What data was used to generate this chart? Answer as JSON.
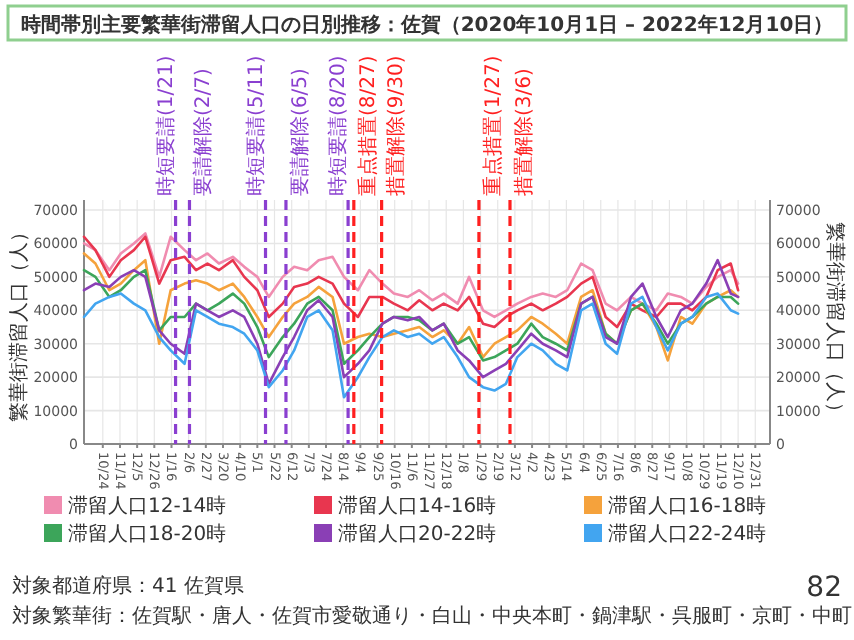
{
  "chart_data": {
    "type": "line",
    "title": "時間帯別主要繁華街滞留人口の日別推移：佐賀（2020年10月1日 – 2022年12月10日）",
    "ylabel": "繁華街滞留人口（人）",
    "y2label": "繁華街滞留人口（人）",
    "x": [
      "2020-10-01",
      "2020-10-15",
      "2020-11-01",
      "2020-11-15",
      "2020-12-01",
      "2020-12-15",
      "2021-01-01",
      "2021-01-15",
      "2021-02-01",
      "2021-02-15",
      "2021-03-01",
      "2021-03-15",
      "2021-04-01",
      "2021-04-15",
      "2021-05-01",
      "2021-05-15",
      "2021-06-01",
      "2021-06-15",
      "2021-07-01",
      "2021-07-15",
      "2021-08-01",
      "2021-08-15",
      "2021-09-01",
      "2021-09-15",
      "2021-10-01",
      "2021-10-15",
      "2021-11-01",
      "2021-11-15",
      "2021-12-01",
      "2021-12-15",
      "2022-01-01",
      "2022-01-15",
      "2022-02-01",
      "2022-02-15",
      "2022-03-01",
      "2022-03-15",
      "2022-04-01",
      "2022-04-15",
      "2022-05-01",
      "2022-05-15",
      "2022-06-01",
      "2022-06-15",
      "2022-07-01",
      "2022-07-15",
      "2022-08-01",
      "2022-08-15",
      "2022-09-01",
      "2022-09-15",
      "2022-10-01",
      "2022-10-15",
      "2022-11-01",
      "2022-11-15",
      "2022-12-01",
      "2022-12-10"
    ],
    "series": [
      {
        "name": "滞留人口12-14時",
        "color": "#f08cb0",
        "values": [
          60000,
          58000,
          52000,
          57000,
          60000,
          63000,
          50000,
          62000,
          58000,
          55000,
          57000,
          54000,
          56000,
          53000,
          50000,
          44000,
          50000,
          53000,
          52000,
          55000,
          56000,
          50000,
          46000,
          52000,
          48000,
          45000,
          44000,
          46000,
          43000,
          45000,
          42000,
          50000,
          40000,
          38000,
          40000,
          42000,
          44000,
          45000,
          44000,
          46000,
          54000,
          52000,
          42000,
          40000,
          44000,
          42000,
          40000,
          45000,
          44000,
          42000,
          47000,
          50000,
          52000,
          48000
        ]
      },
      {
        "name": "滞留人口14-16時",
        "color": "#e8364f",
        "values": [
          62000,
          58000,
          50000,
          55000,
          58000,
          62000,
          48000,
          55000,
          56000,
          52000,
          54000,
          52000,
          55000,
          50000,
          46000,
          38000,
          42000,
          47000,
          48000,
          50000,
          48000,
          42000,
          38000,
          44000,
          44000,
          42000,
          40000,
          43000,
          40000,
          42000,
          40000,
          44000,
          36000,
          35000,
          38000,
          40000,
          42000,
          40000,
          42000,
          44000,
          48000,
          50000,
          38000,
          35000,
          42000,
          40000,
          38000,
          42000,
          42000,
          40000,
          44000,
          52000,
          54000,
          46000
        ]
      },
      {
        "name": "滞留人口16-18時",
        "color": "#f5a23c",
        "values": [
          57000,
          54000,
          46000,
          48000,
          52000,
          55000,
          30000,
          46000,
          48000,
          49000,
          48000,
          46000,
          48000,
          44000,
          38000,
          32000,
          38000,
          42000,
          44000,
          47000,
          44000,
          30000,
          32000,
          33000,
          32000,
          33000,
          34000,
          35000,
          32000,
          34000,
          30000,
          35000,
          26000,
          30000,
          32000,
          34000,
          38000,
          36000,
          33000,
          30000,
          44000,
          46000,
          33000,
          30000,
          40000,
          42000,
          35000,
          25000,
          38000,
          36000,
          42000,
          44000,
          46000,
          44000
        ]
      },
      {
        "name": "滞留人口18-20時",
        "color": "#3ca55a",
        "values": [
          52000,
          50000,
          44000,
          46000,
          50000,
          52000,
          34000,
          38000,
          38000,
          42000,
          40000,
          42000,
          45000,
          42000,
          35000,
          26000,
          32000,
          36000,
          42000,
          44000,
          40000,
          24000,
          28000,
          32000,
          36000,
          38000,
          38000,
          37000,
          34000,
          36000,
          30000,
          32000,
          25000,
          26000,
          28000,
          30000,
          36000,
          32000,
          30000,
          28000,
          42000,
          44000,
          33000,
          30000,
          40000,
          42000,
          36000,
          30000,
          36000,
          38000,
          42000,
          44000,
          44000,
          42000
        ]
      },
      {
        "name": "滞留人口20-22時",
        "color": "#8a3fb5",
        "values": [
          46000,
          48000,
          47000,
          50000,
          52000,
          50000,
          34000,
          30000,
          27000,
          42000,
          40000,
          38000,
          40000,
          38000,
          30000,
          18000,
          26000,
          32000,
          40000,
          43000,
          38000,
          20000,
          24000,
          28000,
          36000,
          38000,
          37000,
          38000,
          34000,
          36000,
          28000,
          25000,
          20000,
          22000,
          24000,
          28000,
          33000,
          30000,
          28000,
          26000,
          42000,
          44000,
          32000,
          30000,
          44000,
          48000,
          38000,
          32000,
          40000,
          42000,
          48000,
          55000,
          45000,
          44000
        ]
      },
      {
        "name": "滞留人口22-24時",
        "color": "#42a5f0",
        "values": [
          38000,
          42000,
          44000,
          45000,
          42000,
          40000,
          32000,
          28000,
          24000,
          40000,
          38000,
          36000,
          35000,
          33000,
          28000,
          17000,
          22000,
          28000,
          38000,
          40000,
          34000,
          14000,
          20000,
          26000,
          32000,
          34000,
          32000,
          33000,
          30000,
          32000,
          26000,
          20000,
          17000,
          16000,
          18000,
          26000,
          30000,
          28000,
          24000,
          22000,
          40000,
          42000,
          30000,
          27000,
          42000,
          44000,
          35000,
          28000,
          36000,
          38000,
          44000,
          45000,
          40000,
          39000
        ]
      }
    ],
    "xlim": [
      "2020-10-01",
      "2023-01-18"
    ],
    "xticks": [
      {
        "value": "2020-10-24",
        "label": "10/24"
      },
      {
        "value": "2020-11-14",
        "label": "11/14"
      },
      {
        "value": "2020-12-05",
        "label": "12/5"
      },
      {
        "value": "2020-12-26",
        "label": "12/26"
      },
      {
        "value": "2021-01-16",
        "label": "1/16"
      },
      {
        "value": "2021-02-06",
        "label": "2/6"
      },
      {
        "value": "2021-02-27",
        "label": "2/27"
      },
      {
        "value": "2021-03-20",
        "label": "3/20"
      },
      {
        "value": "2021-04-10",
        "label": "4/10"
      },
      {
        "value": "2021-05-01",
        "label": "5/1"
      },
      {
        "value": "2021-05-22",
        "label": "5/22"
      },
      {
        "value": "2021-06-12",
        "label": "6/12"
      },
      {
        "value": "2021-07-03",
        "label": "7/3"
      },
      {
        "value": "2021-07-24",
        "label": "7/24"
      },
      {
        "value": "2021-08-14",
        "label": "8/14"
      },
      {
        "value": "2021-09-04",
        "label": "9/4"
      },
      {
        "value": "2021-09-25",
        "label": "9/25"
      },
      {
        "value": "2021-10-16",
        "label": "10/16"
      },
      {
        "value": "2021-11-06",
        "label": "11/6"
      },
      {
        "value": "2021-11-27",
        "label": "11/27"
      },
      {
        "value": "2021-12-18",
        "label": "12/18"
      },
      {
        "value": "2022-01-08",
        "label": "1/8"
      },
      {
        "value": "2022-01-29",
        "label": "1/29"
      },
      {
        "value": "2022-02-19",
        "label": "2/19"
      },
      {
        "value": "2022-03-12",
        "label": "3/12"
      },
      {
        "value": "2022-04-02",
        "label": "4/2"
      },
      {
        "value": "2022-04-23",
        "label": "4/23"
      },
      {
        "value": "2022-05-14",
        "label": "5/14"
      },
      {
        "value": "2022-06-04",
        "label": "6/4"
      },
      {
        "value": "2022-06-25",
        "label": "6/25"
      },
      {
        "value": "2022-07-16",
        "label": "7/16"
      },
      {
        "value": "2022-08-06",
        "label": "8/6"
      },
      {
        "value": "2022-08-27",
        "label": "8/27"
      },
      {
        "value": "2022-09-17",
        "label": "9/17"
      },
      {
        "value": "2022-10-08",
        "label": "10/8"
      },
      {
        "value": "2022-10-29",
        "label": "10/29"
      },
      {
        "value": "2022-11-19",
        "label": "11/19"
      },
      {
        "value": "2022-12-10",
        "label": "12/10"
      },
      {
        "value": "2022-12-31",
        "label": "12/31"
      }
    ],
    "ylim": [
      0,
      73000
    ],
    "yticks": [
      0,
      10000,
      20000,
      30000,
      40000,
      50000,
      60000,
      70000
    ],
    "y2lim": [
      0,
      73000
    ],
    "y2ticks": [
      0,
      10000,
      20000,
      30000,
      40000,
      50000,
      60000,
      70000
    ],
    "ref_lines": [
      {
        "axis": "x",
        "value": "2021-01-21",
        "label": "時短要請(1/21)",
        "color": "#8a3fd0",
        "line_style": "dashed"
      },
      {
        "axis": "x",
        "value": "2021-02-07",
        "label": "要請解除(2/7)",
        "color": "#8a3fd0",
        "line_style": "dashed"
      },
      {
        "axis": "x",
        "value": "2021-05-11",
        "label": "時短要請(5/11)",
        "color": "#8a3fd0",
        "line_style": "dashed"
      },
      {
        "axis": "x",
        "value": "2021-06-05",
        "label": "要請解除(6/5)",
        "color": "#8a3fd0",
        "line_style": "dashed"
      },
      {
        "axis": "x",
        "value": "2021-08-20",
        "label": "時短要請(8/20)",
        "color": "#8a3fd0",
        "line_style": "dashed"
      },
      {
        "axis": "x",
        "value": "2021-08-27",
        "label": "重点措置(8/27)",
        "color": "#ff2020",
        "line_style": "dashed"
      },
      {
        "axis": "x",
        "value": "2021-09-30",
        "label": "措置解除(9/30)",
        "color": "#ff2020",
        "line_style": "dashed"
      },
      {
        "axis": "x",
        "value": "2022-01-27",
        "label": "重点措置(1/27)",
        "color": "#ff2020",
        "line_style": "dashed"
      },
      {
        "axis": "x",
        "value": "2022-03-06",
        "label": "措置解除(3/6)",
        "color": "#ff2020",
        "line_style": "dashed"
      }
    ],
    "grid": true,
    "legend": "bottom",
    "annotations": [
      "対象都道府県：41 佐賀県",
      "対象繁華街：佐賀駅・唐人・佐賀市愛敬通り・白山・中央本町・鍋津駅・呉服町・京町・中町",
      "82"
    ]
  }
}
